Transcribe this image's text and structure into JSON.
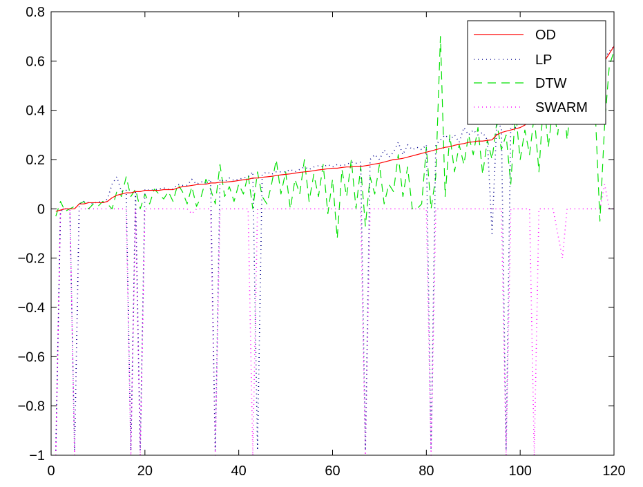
{
  "chart_data": {
    "type": "line",
    "title": "",
    "xlabel": "",
    "ylabel": "",
    "xlim": [
      0,
      120
    ],
    "ylim": [
      -1,
      0.8
    ],
    "xticks": [
      0,
      20,
      40,
      60,
      80,
      100,
      120
    ],
    "yticks": [
      -1,
      -0.8,
      -0.6,
      -0.4,
      -0.2,
      0,
      0.2,
      0.4,
      0.6,
      0.8
    ],
    "xtick_labels": [
      "0",
      "20",
      "40",
      "60",
      "80",
      "100",
      "120"
    ],
    "ytick_labels": [
      "−1",
      "−0.8",
      "−0.6",
      "−0.4",
      "−0.2",
      "0",
      "0.2",
      "0.4",
      "0.6",
      "0.8"
    ],
    "grid": false,
    "legend_position": "top-right",
    "series": [
      {
        "name": "OD",
        "color": "#ff0000",
        "style": "solid",
        "x": [
          1,
          2,
          3,
          4,
          5,
          6,
          7,
          8,
          9,
          10,
          11,
          12,
          13,
          14,
          15,
          16,
          17,
          18,
          19,
          20,
          21,
          22,
          23,
          24,
          25,
          26,
          27,
          28,
          29,
          30,
          31,
          32,
          33,
          34,
          35,
          36,
          37,
          38,
          39,
          40,
          41,
          42,
          43,
          44,
          45,
          46,
          47,
          48,
          49,
          50,
          51,
          52,
          53,
          54,
          55,
          56,
          57,
          58,
          59,
          60,
          61,
          62,
          63,
          64,
          65,
          66,
          67,
          68,
          69,
          70,
          71,
          72,
          73,
          74,
          75,
          76,
          77,
          78,
          79,
          80,
          81,
          82,
          83,
          84,
          85,
          86,
          87,
          88,
          89,
          90,
          91,
          92,
          93,
          94,
          95,
          96,
          97,
          98,
          99,
          100,
          101,
          102,
          103,
          104,
          105,
          106,
          107,
          108,
          109,
          110,
          111,
          112,
          113,
          114,
          115,
          116,
          117,
          118,
          119,
          120
        ],
        "y": [
          -0.01,
          -0.005,
          0,
          0,
          0,
          0.02,
          0.02,
          0.025,
          0.025,
          0.025,
          0.025,
          0.03,
          0.045,
          0.055,
          0.06,
          0.065,
          0.065,
          0.07,
          0.07,
          0.075,
          0.075,
          0.075,
          0.075,
          0.078,
          0.078,
          0.078,
          0.085,
          0.09,
          0.092,
          0.095,
          0.098,
          0.1,
          0.1,
          0.105,
          0.105,
          0.108,
          0.108,
          0.11,
          0.112,
          0.115,
          0.118,
          0.12,
          0.125,
          0.125,
          0.128,
          0.13,
          0.132,
          0.135,
          0.138,
          0.14,
          0.142,
          0.145,
          0.148,
          0.15,
          0.152,
          0.155,
          0.158,
          0.16,
          0.163,
          0.165,
          0.165,
          0.168,
          0.17,
          0.17,
          0.172,
          0.172,
          0.175,
          0.178,
          0.182,
          0.185,
          0.19,
          0.195,
          0.2,
          0.202,
          0.205,
          0.21,
          0.215,
          0.22,
          0.225,
          0.23,
          0.235,
          0.24,
          0.245,
          0.25,
          0.252,
          0.258,
          0.262,
          0.265,
          0.27,
          0.272,
          0.275,
          0.275,
          0.278,
          0.28,
          0.3,
          0.31,
          0.315,
          0.32,
          0.325,
          0.33,
          0.34,
          0.36,
          0.38,
          0.39,
          0.4,
          0.41,
          0.42,
          0.43,
          0.44,
          0.45,
          0.46,
          0.48,
          0.5,
          0.52,
          0.54,
          0.56,
          0.58,
          0.6,
          0.63,
          0.66
        ]
      },
      {
        "name": "LP",
        "color": "#00008b",
        "style": "dotted",
        "x": [
          1,
          2,
          3,
          4,
          5,
          6,
          7,
          8,
          9,
          10,
          11,
          12,
          13,
          14,
          15,
          16,
          17,
          18,
          19,
          20,
          21,
          22,
          23,
          24,
          25,
          26,
          27,
          28,
          29,
          30,
          31,
          32,
          33,
          34,
          35,
          36,
          37,
          38,
          39,
          40,
          41,
          42,
          43,
          44,
          45,
          46,
          47,
          48,
          49,
          50,
          51,
          52,
          53,
          54,
          55,
          56,
          57,
          58,
          59,
          60,
          61,
          62,
          63,
          64,
          65,
          66,
          67,
          68,
          69,
          70,
          71,
          72,
          73,
          74,
          75,
          76,
          77,
          78,
          79,
          80,
          81,
          82,
          83,
          84,
          85,
          86,
          87,
          88,
          89,
          90,
          91,
          92,
          93,
          94,
          95,
          96,
          97,
          98,
          99,
          100,
          101,
          102,
          103,
          104,
          105,
          106,
          107,
          108,
          109,
          110,
          111,
          112,
          113,
          114,
          115,
          116,
          117,
          118,
          119,
          120
        ],
        "y": [
          -0.98,
          -0.01,
          0,
          0,
          -0.98,
          0.02,
          0.03,
          0.025,
          0.02,
          0.03,
          0.025,
          0.04,
          0.1,
          0.13,
          0.07,
          0.075,
          -0.98,
          0.075,
          -0.98,
          0.08,
          0.075,
          0.078,
          0.08,
          0.085,
          0.08,
          0.08,
          0.1,
          0.095,
          0.095,
          0.12,
          0.1,
          0.11,
          0.105,
          0.12,
          -0.98,
          0.12,
          0.11,
          0.125,
          0.115,
          0.12,
          0.125,
          0.13,
          0.15,
          -0.98,
          0.14,
          0.15,
          0.14,
          0.15,
          0.15,
          0.15,
          0.16,
          0.15,
          0.16,
          0.17,
          0.16,
          0.17,
          0.175,
          0.17,
          0.18,
          0.17,
          0.18,
          0.175,
          0.18,
          0.19,
          0.185,
          0.19,
          -0.98,
          0.2,
          0.22,
          0.2,
          0.24,
          0.21,
          0.23,
          0.27,
          0.22,
          0.26,
          0.24,
          0.25,
          0.24,
          0.26,
          -0.98,
          0.26,
          0.28,
          0.3,
          0.28,
          0.3,
          0.27,
          0.33,
          0.3,
          0.32,
          0.3,
          0.31,
          0.28,
          -0.1,
          0.35,
          0.33,
          -0.98,
          0.35,
          0.33,
          0.36,
          0.38,
          0.36,
          0.38,
          0.4,
          0.4,
          0.42,
          0.43,
          0.44,
          0.45,
          0.45,
          0.47,
          0.49,
          0.5,
          0.52,
          0.54,
          0.57,
          0.59,
          0.61,
          0.64,
          0.66
        ]
      },
      {
        "name": "DTW",
        "color": "#00e000",
        "style": "dashed",
        "x": [
          1,
          2,
          3,
          4,
          5,
          6,
          7,
          8,
          9,
          10,
          11,
          12,
          13,
          14,
          15,
          16,
          17,
          18,
          19,
          20,
          21,
          22,
          23,
          24,
          25,
          26,
          27,
          28,
          29,
          30,
          31,
          32,
          33,
          34,
          35,
          36,
          37,
          38,
          39,
          40,
          41,
          42,
          43,
          44,
          45,
          46,
          47,
          48,
          49,
          50,
          51,
          52,
          53,
          54,
          55,
          56,
          57,
          58,
          59,
          60,
          61,
          62,
          63,
          64,
          65,
          66,
          67,
          68,
          69,
          70,
          71,
          72,
          73,
          74,
          75,
          76,
          77,
          78,
          79,
          80,
          81,
          82,
          83,
          84,
          85,
          86,
          87,
          88,
          89,
          90,
          91,
          92,
          93,
          94,
          95,
          96,
          97,
          98,
          99,
          100,
          101,
          102,
          103,
          104,
          105,
          106,
          107,
          108,
          109,
          110,
          111,
          112,
          113,
          114,
          115,
          116,
          117,
          118,
          119,
          120
        ],
        "y": [
          -0.03,
          0.03,
          -0.01,
          0,
          0.01,
          0.02,
          0.03,
          0,
          0.02,
          0.01,
          0.03,
          0.02,
          0,
          0.07,
          0.05,
          0.13,
          0.05,
          0.08,
          0,
          0.06,
          0.02,
          0.08,
          0.06,
          0.04,
          0.07,
          0.03,
          0.1,
          0.07,
          0.02,
          0.09,
          0.01,
          0.05,
          0.12,
          0.08,
          0.02,
          0.18,
          0.05,
          0.09,
          0.03,
          0.1,
          0.06,
          0.14,
          0,
          0.15,
          0.05,
          0.02,
          0.1,
          0.2,
          0.06,
          0.15,
          0,
          0.12,
          0.06,
          0.2,
          0.03,
          0.14,
          0.05,
          0.18,
          -0.02,
          0.12,
          -0.12,
          0.16,
          0.05,
          0.2,
          0.0,
          0.17,
          -0.07,
          0.13,
          0.06,
          0.18,
          0.02,
          0.1,
          0.07,
          0.22,
          0.05,
          0.17,
          0,
          0.0,
          0.02,
          0.25,
          0.0,
          0.13,
          0.7,
          0.05,
          0.3,
          0.15,
          0.26,
          0.18,
          0.3,
          0.22,
          0.33,
          0.14,
          0.28,
          0.2,
          0.35,
          0.24,
          0.3,
          0.1,
          0.4,
          0.2,
          0.32,
          0.22,
          0.38,
          0.15,
          0.45,
          0.25,
          0.42,
          0.3,
          0.5,
          0.28,
          0.45,
          0.35,
          0.52,
          0.38,
          0.48,
          0.4,
          -0.05,
          0.34,
          0.58,
          0.64
        ]
      },
      {
        "name": "SWARM",
        "color": "#ff00ff",
        "style": "dotted",
        "x": [
          1,
          2,
          3,
          4,
          5,
          6,
          7,
          8,
          9,
          10,
          11,
          12,
          13,
          14,
          15,
          16,
          17,
          18,
          19,
          20,
          21,
          22,
          23,
          24,
          25,
          26,
          27,
          28,
          29,
          30,
          31,
          32,
          33,
          34,
          35,
          36,
          37,
          38,
          39,
          40,
          41,
          42,
          43,
          44,
          45,
          46,
          47,
          48,
          49,
          50,
          51,
          52,
          53,
          54,
          55,
          56,
          57,
          58,
          59,
          60,
          61,
          62,
          63,
          64,
          65,
          66,
          67,
          68,
          69,
          70,
          71,
          72,
          73,
          74,
          75,
          76,
          77,
          78,
          79,
          80,
          81,
          82,
          83,
          84,
          85,
          86,
          87,
          88,
          89,
          90,
          91,
          92,
          93,
          94,
          95,
          96,
          97,
          98,
          99,
          100,
          101,
          102,
          103,
          104,
          105,
          106,
          107,
          108,
          109,
          110,
          111,
          112,
          113,
          114,
          115,
          116,
          117,
          118,
          119,
          120
        ],
        "y": [
          -1,
          0,
          0,
          0,
          -1,
          0,
          0,
          0,
          0,
          0,
          0,
          0,
          0,
          0,
          0,
          0,
          -1,
          0,
          -1,
          0,
          0,
          0,
          0,
          0,
          0,
          0,
          0,
          0,
          0,
          -0.02,
          0,
          0,
          0,
          0,
          -1,
          0,
          0,
          0,
          0,
          0,
          0,
          0,
          -1,
          0,
          0,
          0,
          0,
          0,
          0,
          0,
          0,
          0,
          0,
          0,
          0,
          0,
          0,
          0,
          0,
          0,
          0,
          0,
          0,
          0,
          0,
          0,
          -1,
          0,
          0,
          0,
          0,
          0,
          0,
          0,
          0,
          0,
          0,
          0,
          0,
          0,
          -1,
          0,
          0,
          0,
          0,
          0,
          0,
          0,
          0,
          0,
          0,
          0,
          0,
          0,
          0,
          0,
          -1,
          0,
          0,
          0,
          0,
          0,
          -1,
          0,
          0,
          0,
          0,
          -0.1,
          -0.2,
          0,
          0,
          0,
          0,
          0,
          0,
          0,
          0,
          0.1,
          0,
          0
        ]
      }
    ]
  }
}
